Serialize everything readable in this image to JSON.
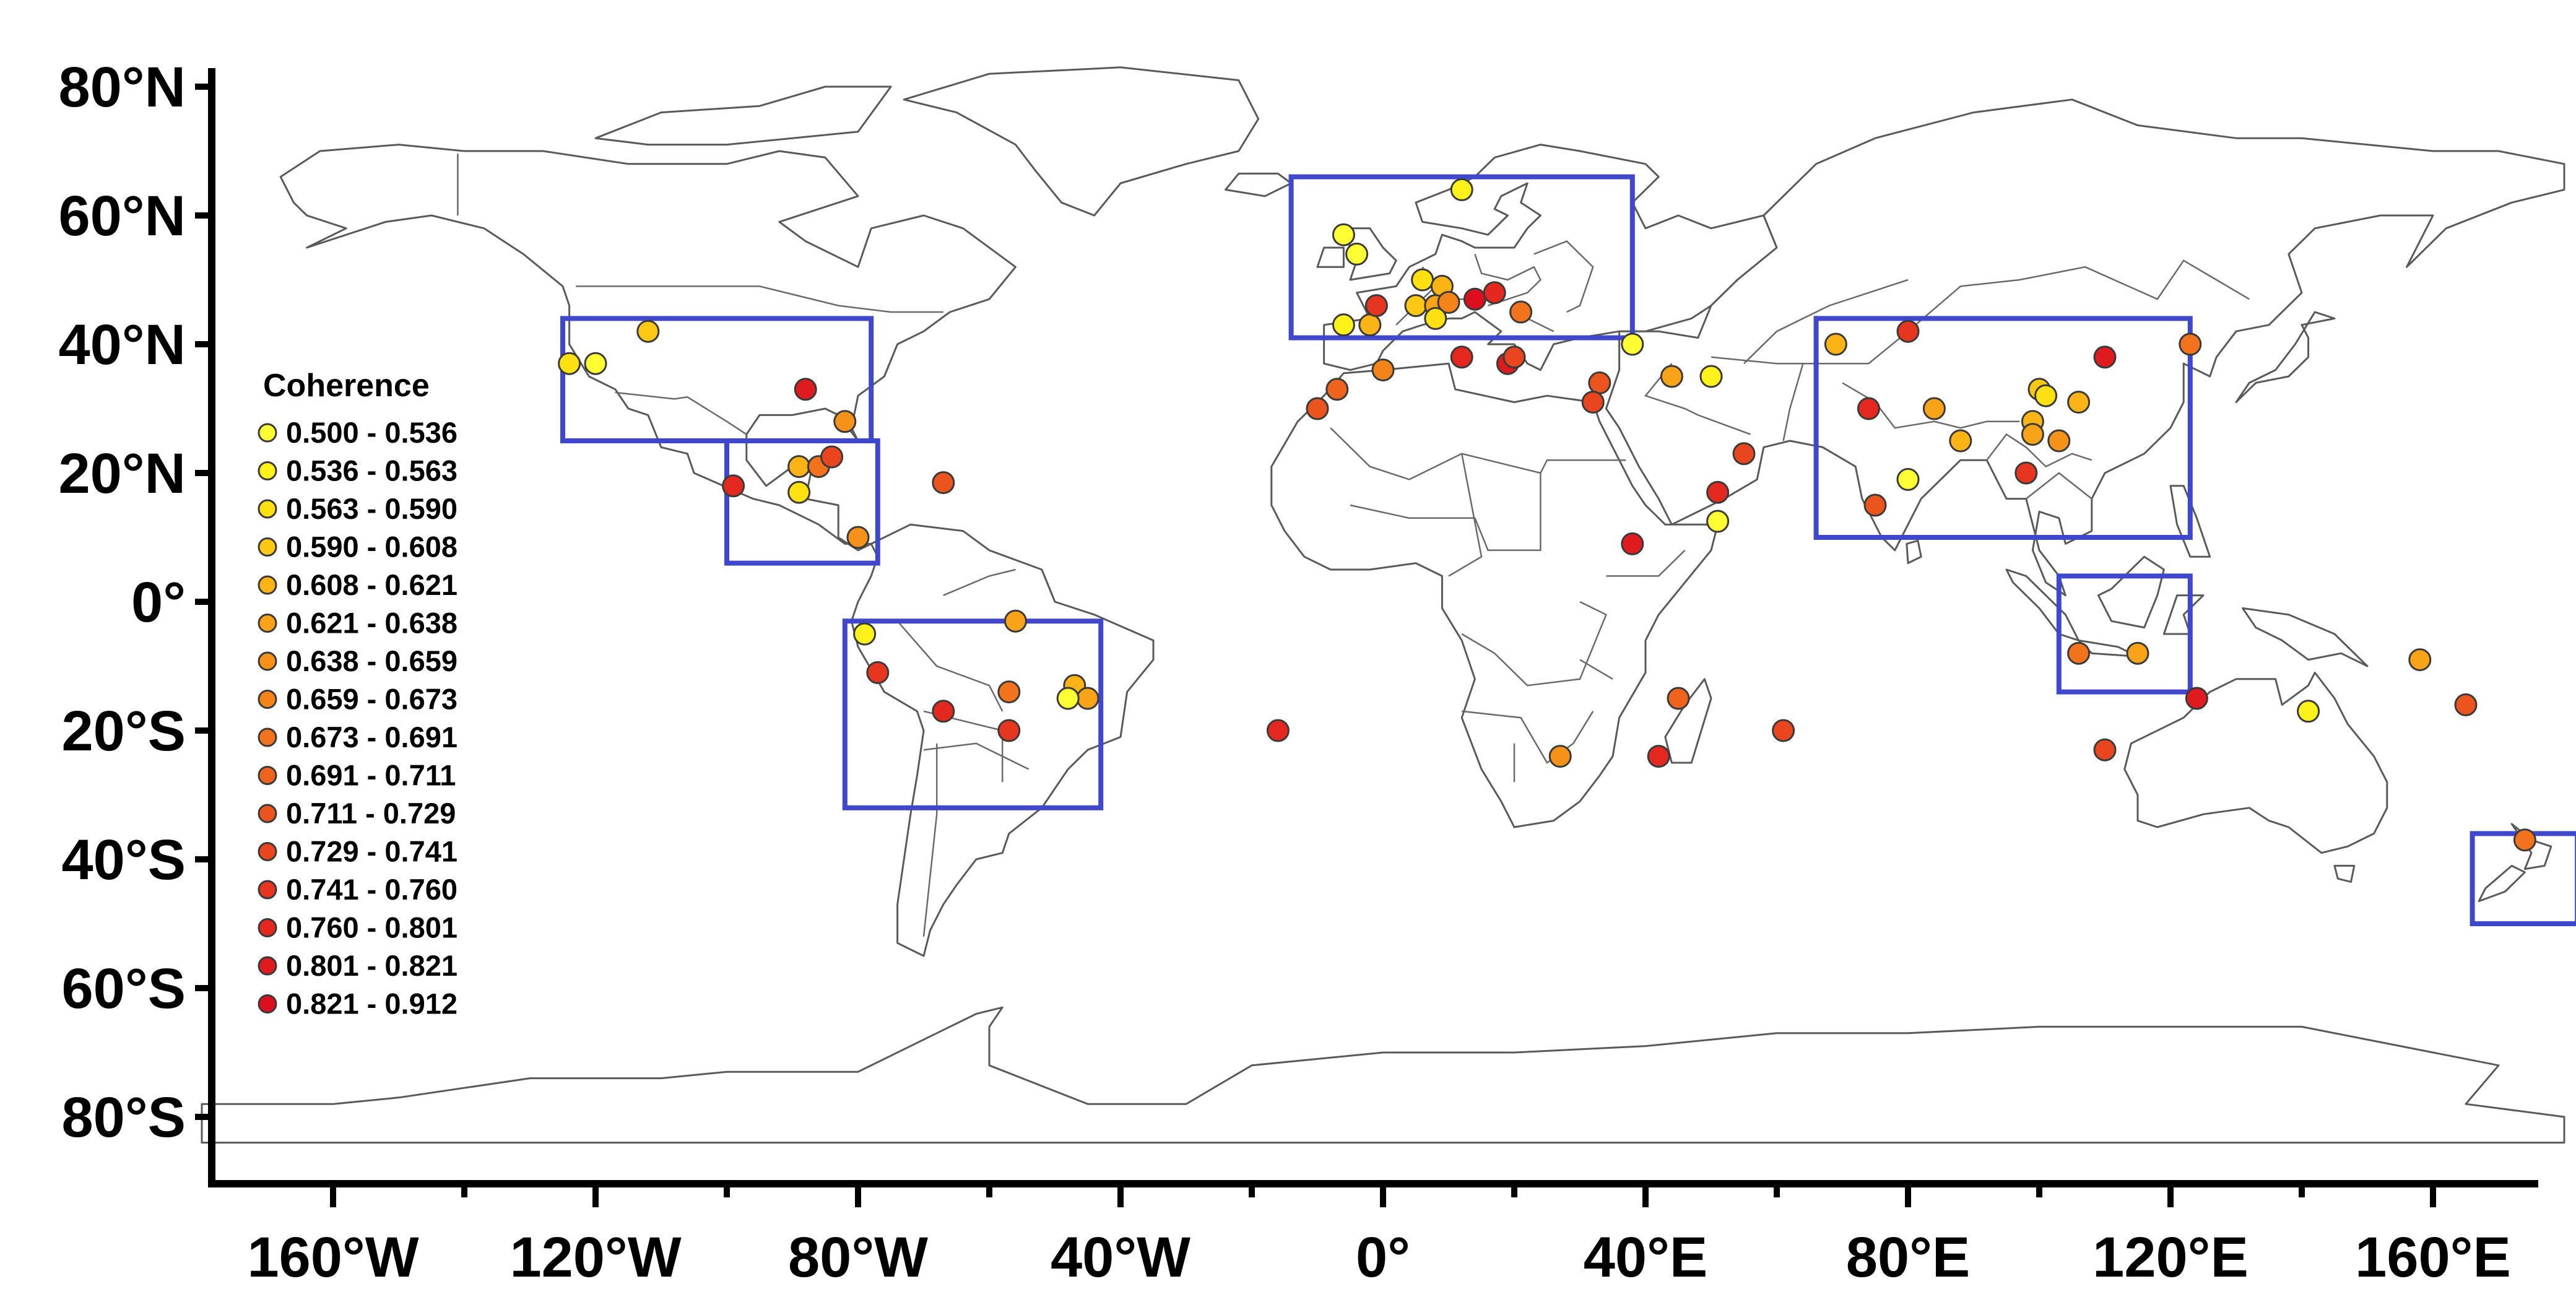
{
  "map": {
    "y_axis": {
      "ticks": [
        {
          "lat": 80,
          "label": "80°N"
        },
        {
          "lat": 60,
          "label": "60°N"
        },
        {
          "lat": 40,
          "label": "40°N"
        },
        {
          "lat": 20,
          "label": "20°N"
        },
        {
          "lat": 0,
          "label": "0°"
        },
        {
          "lat": -20,
          "label": "20°S"
        },
        {
          "lat": -40,
          "label": "40°S"
        },
        {
          "lat": -60,
          "label": "60°S"
        },
        {
          "lat": -80,
          "label": "80°S"
        }
      ]
    },
    "x_axis": {
      "ticks": [
        {
          "lon": -160,
          "label": "160°W"
        },
        {
          "lon": -120,
          "label": "120°W"
        },
        {
          "lon": -80,
          "label": "80°W"
        },
        {
          "lon": -40,
          "label": "40°W"
        },
        {
          "lon": 0,
          "label": "0°"
        },
        {
          "lon": 40,
          "label": "40°E"
        },
        {
          "lon": 80,
          "label": "80°E"
        },
        {
          "lon": 120,
          "label": "120°E"
        },
        {
          "lon": 160,
          "label": "160°E"
        }
      ]
    },
    "box_color": "#3f48cc",
    "land_stroke": "#5a5a5a"
  },
  "legend": {
    "title": "Coherence",
    "items": [
      {
        "label": "0.500 - 0.536",
        "color": "#ffff33"
      },
      {
        "label": "0.536 - 0.563",
        "color": "#fff21a"
      },
      {
        "label": "0.563 - 0.590",
        "color": "#ffe010"
      },
      {
        "label": "0.590 - 0.608",
        "color": "#fdc814"
      },
      {
        "label": "0.608 - 0.621",
        "color": "#fbb316"
      },
      {
        "label": "0.621 - 0.638",
        "color": "#f9a318"
      },
      {
        "label": "0.638 - 0.659",
        "color": "#f6911a"
      },
      {
        "label": "0.659 - 0.673",
        "color": "#f4831a"
      },
      {
        "label": "0.673 - 0.691",
        "color": "#f2731c"
      },
      {
        "label": "0.691 - 0.711",
        "color": "#ef641d"
      },
      {
        "label": "0.711 - 0.729",
        "color": "#ec541e"
      },
      {
        "label": "0.729 - 0.741",
        "color": "#e9461f"
      },
      {
        "label": "0.741 - 0.760",
        "color": "#e6361f"
      },
      {
        "label": "0.760 - 0.801",
        "color": "#e42820"
      },
      {
        "label": "0.801 - 0.821",
        "color": "#e01b20"
      },
      {
        "label": "0.821 - 0.912",
        "color": "#dd0f1f"
      }
    ]
  },
  "regions": [
    {
      "name": "north-america",
      "lon": [
        -125,
        -78
      ],
      "lat": [
        25,
        44
      ]
    },
    {
      "name": "central-america",
      "lon": [
        -100,
        -77
      ],
      "lat": [
        6,
        25
      ]
    },
    {
      "name": "south-america",
      "lon": [
        -82,
        -43
      ],
      "lat": [
        -32,
        -3
      ]
    },
    {
      "name": "europe",
      "lon": [
        -14,
        38
      ],
      "lat": [
        41,
        66
      ]
    },
    {
      "name": "asia",
      "lon": [
        66,
        123
      ],
      "lat": [
        10,
        44
      ]
    },
    {
      "name": "maritime-continent",
      "lon": [
        103,
        123
      ],
      "lat": [
        -14,
        4
      ]
    },
    {
      "name": "new-zealand",
      "lon": [
        166,
        182
      ],
      "lat": [
        -50,
        -36
      ]
    }
  ],
  "stations": [
    {
      "lon": -124,
      "lat": 37,
      "c": 3
    },
    {
      "lon": -120,
      "lat": 37,
      "c": 1
    },
    {
      "lon": -112,
      "lat": 42,
      "c": 4
    },
    {
      "lon": -88,
      "lat": 33,
      "c": 15
    },
    {
      "lon": -82,
      "lat": 28,
      "c": 7
    },
    {
      "lon": -89,
      "lat": 21,
      "c": 5
    },
    {
      "lon": -86,
      "lat": 21,
      "c": 9
    },
    {
      "lon": -84,
      "lat": 22.5,
      "c": 12
    },
    {
      "lon": -89,
      "lat": 17,
      "c": 3
    },
    {
      "lon": -99,
      "lat": 18,
      "c": 14
    },
    {
      "lon": -80,
      "lat": 10,
      "c": 7
    },
    {
      "lon": -67,
      "lat": 18.5,
      "c": 11
    },
    {
      "lon": -79,
      "lat": -5,
      "c": 2
    },
    {
      "lon": -77,
      "lat": -11,
      "c": 13
    },
    {
      "lon": -67,
      "lat": -17,
      "c": 14
    },
    {
      "lon": -57,
      "lat": -14,
      "c": 9
    },
    {
      "lon": -57,
      "lat": -20,
      "c": 13
    },
    {
      "lon": -56,
      "lat": -3,
      "c": 6
    },
    {
      "lon": -47,
      "lat": -13,
      "c": 5
    },
    {
      "lon": -45,
      "lat": -15,
      "c": 6
    },
    {
      "lon": -48,
      "lat": -15,
      "c": 1
    },
    {
      "lon": -6,
      "lat": 57,
      "c": 1
    },
    {
      "lon": -4,
      "lat": 54,
      "c": 1
    },
    {
      "lon": 12,
      "lat": 64,
      "c": 2
    },
    {
      "lon": 6,
      "lat": 50,
      "c": 3
    },
    {
      "lon": 9,
      "lat": 49,
      "c": 5
    },
    {
      "lon": 5,
      "lat": 46,
      "c": 4
    },
    {
      "lon": 8,
      "lat": 46,
      "c": 6
    },
    {
      "lon": 10,
      "lat": 46.5,
      "c": 8
    },
    {
      "lon": 8,
      "lat": 44,
      "c": 3
    },
    {
      "lon": 14,
      "lat": 47,
      "c": 16
    },
    {
      "lon": 17,
      "lat": 48,
      "c": 14
    },
    {
      "lon": 21,
      "lat": 45,
      "c": 9
    },
    {
      "lon": -2,
      "lat": 43,
      "c": 5
    },
    {
      "lon": -6,
      "lat": 43,
      "c": 2
    },
    {
      "lon": -1,
      "lat": 46,
      "c": 13
    },
    {
      "lon": 0,
      "lat": 36,
      "c": 8
    },
    {
      "lon": -7,
      "lat": 33,
      "c": 10
    },
    {
      "lon": -10,
      "lat": 30,
      "c": 11
    },
    {
      "lon": 12,
      "lat": 38,
      "c": 14
    },
    {
      "lon": 19,
      "lat": 37,
      "c": 15
    },
    {
      "lon": 20,
      "lat": 38,
      "c": 12
    },
    {
      "lon": 33,
      "lat": 34,
      "c": 11
    },
    {
      "lon": 32,
      "lat": 31,
      "c": 12
    },
    {
      "lon": 38,
      "lat": 40,
      "c": 1
    },
    {
      "lon": 44,
      "lat": 35,
      "c": 6
    },
    {
      "lon": 50,
      "lat": 35,
      "c": 2
    },
    {
      "lon": 55,
      "lat": 23,
      "c": 12
    },
    {
      "lon": 51,
      "lat": 17,
      "c": 14
    },
    {
      "lon": 51,
      "lat": 12.5,
      "c": 1
    },
    {
      "lon": 38,
      "lat": 9,
      "c": 15
    },
    {
      "lon": 45,
      "lat": -15,
      "c": 10
    },
    {
      "lon": 61,
      "lat": -20,
      "c": 12
    },
    {
      "lon": 42,
      "lat": -24,
      "c": 14
    },
    {
      "lon": -16,
      "lat": -20,
      "c": 14
    },
    {
      "lon": 27,
      "lat": -24,
      "c": 7
    },
    {
      "lon": 69,
      "lat": 40,
      "c": 5
    },
    {
      "lon": 80,
      "lat": 42,
      "c": 13
    },
    {
      "lon": 74,
      "lat": 30,
      "c": 14
    },
    {
      "lon": 80,
      "lat": 19,
      "c": 1
    },
    {
      "lon": 84,
      "lat": 30,
      "c": 6
    },
    {
      "lon": 88,
      "lat": 25,
      "c": 5
    },
    {
      "lon": 100,
      "lat": 33,
      "c": 4
    },
    {
      "lon": 101,
      "lat": 32,
      "c": 3
    },
    {
      "lon": 99,
      "lat": 28,
      "c": 5
    },
    {
      "lon": 99,
      "lat": 26,
      "c": 6
    },
    {
      "lon": 103,
      "lat": 25,
      "c": 7
    },
    {
      "lon": 106,
      "lat": 31,
      "c": 5
    },
    {
      "lon": 110,
      "lat": 38,
      "c": 15
    },
    {
      "lon": 123,
      "lat": 40,
      "c": 9
    },
    {
      "lon": 98,
      "lat": 20,
      "c": 13
    },
    {
      "lon": 75,
      "lat": 15,
      "c": 11
    },
    {
      "lon": 106,
      "lat": -8,
      "c": 9
    },
    {
      "lon": 115,
      "lat": -8,
      "c": 6
    },
    {
      "lon": 110,
      "lat": -23,
      "c": 12
    },
    {
      "lon": 124,
      "lat": -15,
      "c": 15
    },
    {
      "lon": 141,
      "lat": -17,
      "c": 2
    },
    {
      "lon": 158,
      "lat": -9,
      "c": 6
    },
    {
      "lon": 165,
      "lat": -16,
      "c": 11
    },
    {
      "lon": 174,
      "lat": -37,
      "c": 9
    }
  ]
}
